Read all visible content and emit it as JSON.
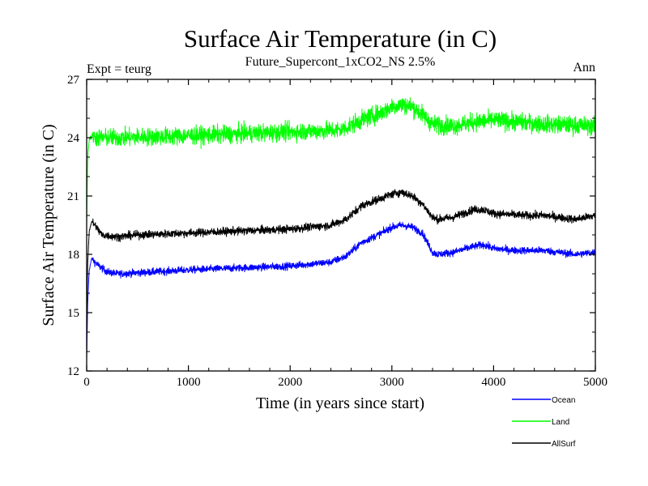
{
  "chart_data": {
    "type": "line",
    "title": "Surface Air Temperature (in C)",
    "subtitle": "Future_Supercont_1xCO2_NS 2.5%",
    "left_label": "Expt = teurg",
    "right_label": "Ann",
    "xlabel": "Time (in years since start)",
    "ylabel": "Surface Air Temperature (in C)",
    "xlim": [
      0,
      5000
    ],
    "ylim": [
      12,
      27
    ],
    "xticks": [
      0,
      1000,
      2000,
      3000,
      4000,
      5000
    ],
    "yticks": [
      12,
      15,
      18,
      21,
      24,
      27
    ],
    "grid": false,
    "legend_position": "bottom-right",
    "series": [
      {
        "name": "Ocean",
        "color": "#0000ff",
        "noise": 0.18,
        "x": [
          0,
          10,
          25,
          50,
          80,
          120,
          200,
          300,
          500,
          1000,
          1500,
          2000,
          2400,
          2550,
          2700,
          2900,
          3000,
          3100,
          3200,
          3300,
          3400,
          3450,
          3600,
          3800,
          3900,
          4000,
          4200,
          4500,
          4800,
          5000
        ],
        "values": [
          12.5,
          15.5,
          17.2,
          17.8,
          17.6,
          17.4,
          17.1,
          17.0,
          17.05,
          17.2,
          17.3,
          17.4,
          17.6,
          17.9,
          18.6,
          19.1,
          19.4,
          19.5,
          19.4,
          19.1,
          18.1,
          18.0,
          18.1,
          18.4,
          18.5,
          18.3,
          18.2,
          18.2,
          18.0,
          18.1
        ]
      },
      {
        "name": "Land",
        "color": "#00ff00",
        "noise": 0.45,
        "x": [
          0,
          10,
          25,
          50,
          100,
          300,
          1000,
          2000,
          2500,
          2700,
          2900,
          3000,
          3100,
          3200,
          3300,
          3400,
          3600,
          3800,
          4000,
          4500,
          5000
        ],
        "values": [
          19.5,
          23.0,
          23.9,
          24.1,
          24.0,
          24.0,
          24.1,
          24.3,
          24.4,
          24.9,
          25.3,
          25.6,
          25.7,
          25.6,
          25.2,
          24.7,
          24.6,
          24.8,
          24.9,
          24.7,
          24.6
        ]
      },
      {
        "name": "AllSurf",
        "color": "#000000",
        "noise": 0.2,
        "x": [
          0,
          10,
          25,
          50,
          80,
          150,
          300,
          500,
          1000,
          1500,
          2000,
          2400,
          2550,
          2700,
          2900,
          3000,
          3100,
          3200,
          3300,
          3400,
          3450,
          3600,
          3800,
          3900,
          4000,
          4300,
          4500,
          4800,
          5000
        ],
        "values": [
          14.5,
          17.5,
          19.2,
          19.7,
          19.5,
          19.0,
          18.9,
          19.0,
          19.1,
          19.2,
          19.3,
          19.5,
          19.8,
          20.5,
          20.9,
          21.1,
          21.2,
          21.0,
          20.6,
          19.9,
          19.8,
          19.9,
          20.3,
          20.3,
          20.1,
          20.0,
          20.0,
          19.8,
          20.0
        ]
      }
    ]
  }
}
